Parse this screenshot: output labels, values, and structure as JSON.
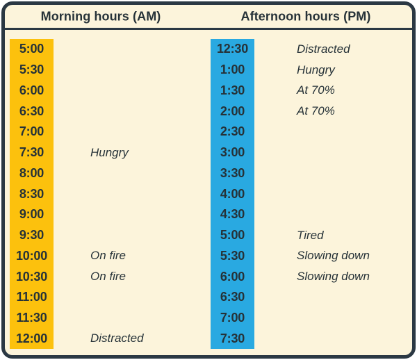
{
  "colors": {
    "page_bg": "#FFFFFF",
    "card_bg": "#FCF4DB",
    "border": "#2B3843",
    "text": "#263238",
    "morning_accent": "#FCC10D",
    "afternoon_accent": "#29A9E1"
  },
  "header": {
    "morning": "Morning hours (AM)",
    "afternoon": "Afternoon hours (PM)"
  },
  "chart_data": {
    "type": "table",
    "title": "",
    "legend": "none",
    "columns": [
      {
        "name": "morning",
        "header": "Morning hours (AM)",
        "accent": "#FCC10D",
        "rows": [
          {
            "time": "5:00",
            "note": ""
          },
          {
            "time": "5:30",
            "note": ""
          },
          {
            "time": "6:00",
            "note": ""
          },
          {
            "time": "6:30",
            "note": ""
          },
          {
            "time": "7:00",
            "note": ""
          },
          {
            "time": "7:30",
            "note": "Hungry"
          },
          {
            "time": "8:00",
            "note": ""
          },
          {
            "time": "8:30",
            "note": ""
          },
          {
            "time": "9:00",
            "note": ""
          },
          {
            "time": "9:30",
            "note": ""
          },
          {
            "time": "10:00",
            "note": "On fire"
          },
          {
            "time": "10:30",
            "note": "On fire"
          },
          {
            "time": "11:00",
            "note": ""
          },
          {
            "time": "11:30",
            "note": ""
          },
          {
            "time": "12:00",
            "note": "Distracted"
          }
        ]
      },
      {
        "name": "afternoon",
        "header": "Afternoon hours (PM)",
        "accent": "#29A9E1",
        "rows": [
          {
            "time": "12:30",
            "note": "Distracted"
          },
          {
            "time": "1:00",
            "note": "Hungry"
          },
          {
            "time": "1:30",
            "note": "At 70%"
          },
          {
            "time": "2:00",
            "note": "At 70%"
          },
          {
            "time": "2:30",
            "note": ""
          },
          {
            "time": "3:00",
            "note": ""
          },
          {
            "time": "3:30",
            "note": ""
          },
          {
            "time": "4:00",
            "note": ""
          },
          {
            "time": "4:30",
            "note": ""
          },
          {
            "time": "5:00",
            "note": "Tired"
          },
          {
            "time": "5:30",
            "note": "Slowing down"
          },
          {
            "time": "6:00",
            "note": "Slowing down"
          },
          {
            "time": "6:30",
            "note": ""
          },
          {
            "time": "7:00",
            "note": ""
          },
          {
            "time": "7:30",
            "note": ""
          }
        ]
      }
    ]
  }
}
